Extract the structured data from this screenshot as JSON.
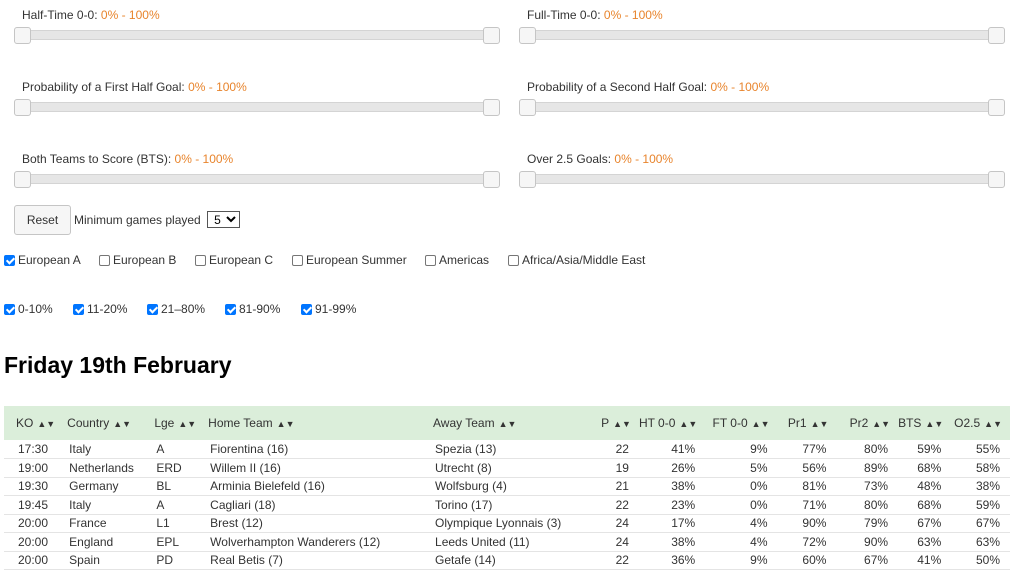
{
  "sliders": [
    {
      "title": "Half-Time 0-0:",
      "range": "0% - 100%"
    },
    {
      "title": "Full-Time 0-0:",
      "range": "0% - 100%"
    },
    {
      "title": "Probability of a First Half Goal:",
      "range": "0% - 100%"
    },
    {
      "title": "Probability of a Second Half Goal:",
      "range": "0% - 100%"
    },
    {
      "title": "Both Teams to Score (BTS):",
      "range": "0% - 100%"
    },
    {
      "title": "Over 2.5 Goals:",
      "range": "0% - 100%"
    }
  ],
  "controls": {
    "reset_label": "Reset",
    "min_games_label": "Minimum games played",
    "min_games_value": "5"
  },
  "regions": [
    {
      "label": "European A",
      "checked": true
    },
    {
      "label": "European B",
      "checked": false
    },
    {
      "label": "European C",
      "checked": false
    },
    {
      "label": "European Summer",
      "checked": false
    },
    {
      "label": "Americas",
      "checked": false
    },
    {
      "label": "Africa/Asia/Middle East",
      "checked": false
    }
  ],
  "percent_bands": [
    {
      "label": "0-10%",
      "checked": true
    },
    {
      "label": "11-20%",
      "checked": true
    },
    {
      "label": "21–80%",
      "checked": true
    },
    {
      "label": "81-90%",
      "checked": true
    },
    {
      "label": "91-99%",
      "checked": true
    }
  ],
  "day_title": "Friday 19th February",
  "table": {
    "sort_icon": "sort-up-down-icon",
    "headers": [
      "KO",
      "Country",
      "Lge",
      "Home Team",
      "Away Team",
      "P",
      "HT 0-0",
      "FT 0-0",
      "Pr1",
      "Pr2",
      "BTS",
      "O2.5"
    ],
    "rows": [
      [
        "17:30",
        "Italy",
        "A",
        "Fiorentina (16)",
        "Spezia (13)",
        "22",
        "41%",
        "9%",
        "77%",
        "80%",
        "59%",
        "55%"
      ],
      [
        "19:00",
        "Netherlands",
        "ERD",
        "Willem II (16)",
        "Utrecht (8)",
        "19",
        "26%",
        "5%",
        "56%",
        "89%",
        "68%",
        "58%"
      ],
      [
        "19:30",
        "Germany",
        "BL",
        "Arminia Bielefeld (16)",
        "Wolfsburg (4)",
        "21",
        "38%",
        "0%",
        "81%",
        "73%",
        "48%",
        "38%"
      ],
      [
        "19:45",
        "Italy",
        "A",
        "Cagliari (18)",
        "Torino (17)",
        "22",
        "23%",
        "0%",
        "71%",
        "80%",
        "68%",
        "59%"
      ],
      [
        "20:00",
        "France",
        "L1",
        "Brest (12)",
        "Olympique Lyonnais (3)",
        "24",
        "17%",
        "4%",
        "90%",
        "79%",
        "67%",
        "67%"
      ],
      [
        "20:00",
        "England",
        "EPL",
        "Wolverhampton Wanderers (12)",
        "Leeds United (11)",
        "24",
        "38%",
        "4%",
        "72%",
        "90%",
        "63%",
        "63%"
      ],
      [
        "20:00",
        "Spain",
        "PD",
        "Real Betis (7)",
        "Getafe (14)",
        "22",
        "36%",
        "9%",
        "60%",
        "67%",
        "41%",
        "50%"
      ]
    ]
  },
  "colors": {
    "range_text": "#e8842c",
    "table_header_bg": "#dbeeda",
    "checkbox_checked": "#0075ff"
  }
}
